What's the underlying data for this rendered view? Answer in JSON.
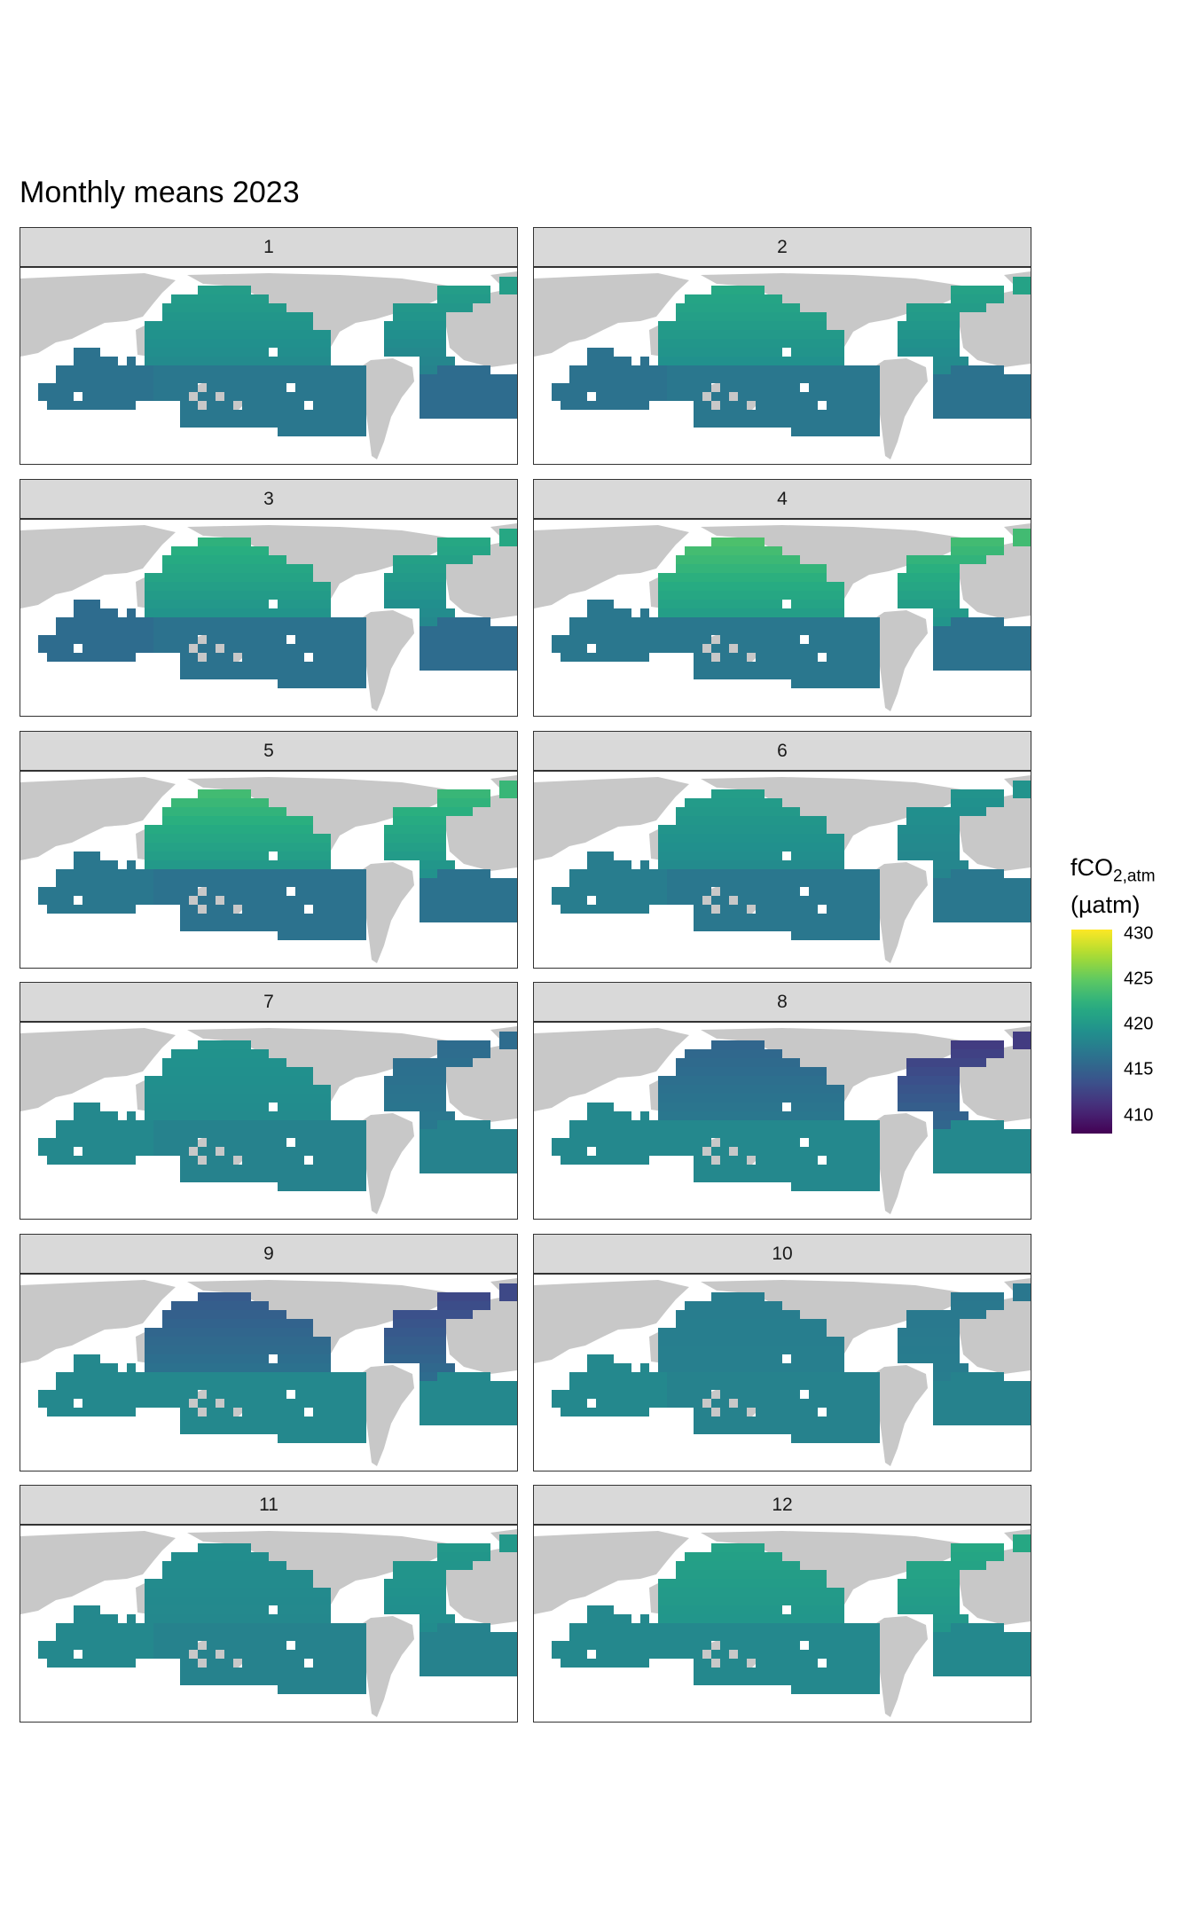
{
  "title": "Monthly means 2023",
  "legend": {
    "title_main": "fCO",
    "title_sub": "2,atm",
    "unit": "(µatm)",
    "min": 408,
    "max": 430.5,
    "ticks": [
      "430",
      "425",
      "420",
      "415",
      "410"
    ],
    "colormap": [
      "#440154",
      "#472c7a",
      "#3b518b",
      "#2c718e",
      "#21908d",
      "#27ad81",
      "#5cc863",
      "#aadc32",
      "#fde725"
    ]
  },
  "colors": {
    "land": "#c8c8c8",
    "panel_border": "#333333",
    "strip": "#d9d9d9"
  },
  "chart_data": {
    "type": "heatmap",
    "title": "Monthly means 2023",
    "facet_variable": "month",
    "color_scale": "viridis",
    "fill_label": "fCO2,atm (µatm)",
    "fill_range": [
      408,
      430.5
    ],
    "regions": [
      "north_pacific",
      "south_pacific",
      "north_atlantic",
      "south_atlantic",
      "indian_ocean"
    ],
    "panels": [
      {
        "label": "1",
        "month": 1,
        "north_pacific": 420.5,
        "south_pacific": 417.0,
        "north_atlantic": 420.5,
        "south_atlantic": 416.0,
        "indian_ocean": 416.5
      },
      {
        "label": "2",
        "month": 2,
        "north_pacific": 421.5,
        "south_pacific": 417.0,
        "north_atlantic": 421.0,
        "south_atlantic": 416.5,
        "indian_ocean": 416.5
      },
      {
        "label": "3",
        "month": 3,
        "north_pacific": 422.5,
        "south_pacific": 416.5,
        "north_atlantic": 421.5,
        "south_atlantic": 416.0,
        "indian_ocean": 416.0
      },
      {
        "label": "4",
        "month": 4,
        "north_pacific": 424.0,
        "south_pacific": 417.0,
        "north_atlantic": 423.5,
        "south_atlantic": 416.5,
        "indian_ocean": 417.0
      },
      {
        "label": "5",
        "month": 5,
        "north_pacific": 423.5,
        "south_pacific": 416.5,
        "north_atlantic": 423.0,
        "south_atlantic": 416.5,
        "indian_ocean": 417.0
      },
      {
        "label": "6",
        "month": 6,
        "north_pacific": 420.5,
        "south_pacific": 417.0,
        "north_atlantic": 419.5,
        "south_atlantic": 417.0,
        "indian_ocean": 417.5
      },
      {
        "label": "7",
        "month": 7,
        "north_pacific": 419.5,
        "south_pacific": 418.0,
        "north_atlantic": 416.0,
        "south_atlantic": 418.0,
        "indian_ocean": 418.5
      },
      {
        "label": "8",
        "month": 8,
        "north_pacific": 415.5,
        "south_pacific": 418.5,
        "north_atlantic": 412.0,
        "south_atlantic": 418.5,
        "indian_ocean": 418.5
      },
      {
        "label": "9",
        "month": 9,
        "north_pacific": 414.5,
        "south_pacific": 418.5,
        "north_atlantic": 413.0,
        "south_atlantic": 418.5,
        "indian_ocean": 418.5
      },
      {
        "label": "10",
        "month": 10,
        "north_pacific": 417.5,
        "south_pacific": 418.0,
        "north_atlantic": 417.0,
        "south_atlantic": 418.0,
        "indian_ocean": 418.5
      },
      {
        "label": "11",
        "month": 11,
        "north_pacific": 419.0,
        "south_pacific": 418.0,
        "north_atlantic": 420.0,
        "south_atlantic": 418.0,
        "indian_ocean": 418.5
      },
      {
        "label": "12",
        "month": 12,
        "north_pacific": 421.0,
        "south_pacific": 418.5,
        "north_atlantic": 421.5,
        "south_atlantic": 418.5,
        "indian_ocean": 418.5
      }
    ]
  }
}
